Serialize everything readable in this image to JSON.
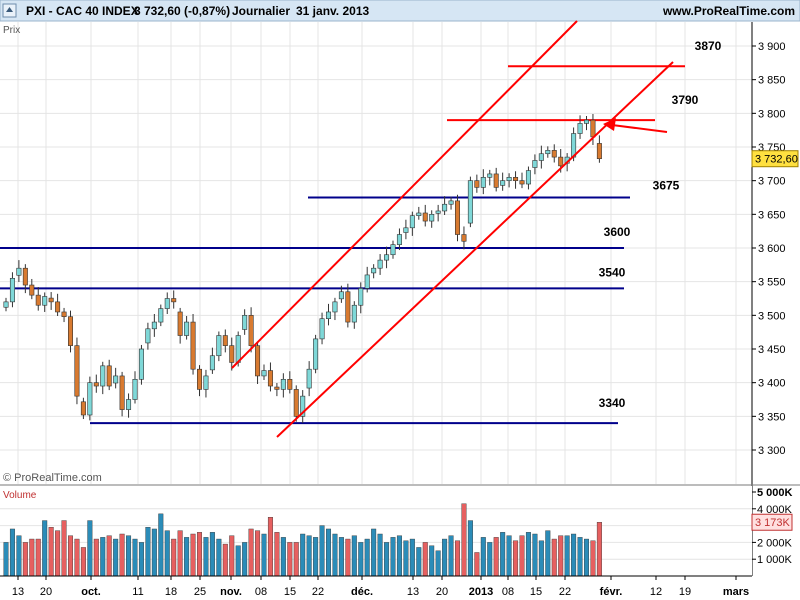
{
  "header": {
    "title": "PXI - CAC 40 INDEX",
    "quote": "3 732,60 (-0,87%)",
    "period": "Journalier",
    "date": "31 janv. 2013",
    "site": "www.ProRealTime.com"
  },
  "price_panel": {
    "label": "Prix",
    "watermark": "© ProRealTime.com"
  },
  "volume_panel": {
    "label": "Volume"
  },
  "colors": {
    "background": "#FFFFFF",
    "header_bg": "#D6E6F4",
    "grid": "#E4E4E4",
    "candle_up": "#7FD8D8",
    "candle_down": "#D87A30",
    "channel_lines": "#FF0000",
    "horizontal_levels": "#00008B",
    "volume_up": "#2B8CB8",
    "volume_down": "#E66060",
    "price_tag": "#FFE040"
  },
  "chart_data": [
    {
      "type": "candlestick",
      "title": "PXI - CAC 40 INDEX",
      "subtitle": "Journalier",
      "ylabel": "Prix",
      "ylim": [
        3270,
        3925
      ],
      "y_ticks": [
        3300,
        3350,
        3400,
        3450,
        3500,
        3550,
        3600,
        3650,
        3700,
        3750,
        3800,
        3850,
        3900
      ],
      "y_tick_labels": [
        "3 300",
        "3 350",
        "3 400",
        "3 450",
        "3 500",
        "3 550",
        "3 600",
        "3 650",
        "3 700",
        "3 750",
        "3 800",
        "3 850",
        "3 900"
      ],
      "x_ticks": [
        "13",
        "20",
        "oct.",
        "11",
        "18",
        "25",
        "nov.",
        "08",
        "15",
        "22",
        "déc.",
        "13",
        "20",
        "2013",
        "08",
        "15",
        "22",
        "févr.",
        "12",
        "19",
        "mars"
      ],
      "last_price_label": "3 732,60",
      "closes": [
        3520,
        3555,
        3570,
        3545,
        3530,
        3515,
        3528,
        3520,
        3505,
        3498,
        3455,
        3380,
        3352,
        3400,
        3395,
        3425,
        3395,
        3410,
        3360,
        3375,
        3405,
        3450,
        3480,
        3490,
        3510,
        3525,
        3520,
        3470,
        3490,
        3420,
        3390,
        3410,
        3440,
        3470,
        3455,
        3430,
        3470,
        3500,
        3455,
        3410,
        3418,
        3395,
        3390,
        3405,
        3390,
        3350,
        3380,
        3420,
        3465,
        3495,
        3505,
        3520,
        3535,
        3490,
        3515,
        3540,
        3560,
        3570,
        3582,
        3590,
        3605,
        3620,
        3630,
        3648,
        3652,
        3640,
        3650,
        3655,
        3665,
        3670,
        3620,
        3610,
        3700,
        3690,
        3705,
        3710,
        3690,
        3700,
        3705,
        3700,
        3695,
        3715,
        3730,
        3740,
        3745,
        3735,
        3722,
        3735,
        3770,
        3785,
        3790,
        3765,
        3732.6
      ],
      "levels": [
        {
          "value": 3870,
          "label": "3870"
        },
        {
          "value": 3790,
          "label": "3790"
        },
        {
          "value": 3675,
          "label": "3675"
        },
        {
          "value": 3600,
          "label": "3600"
        },
        {
          "value": 3540,
          "label": "3540"
        },
        {
          "value": 3340,
          "label": "3340"
        }
      ],
      "annotations": [
        "ascending channel",
        "arrow pointing to breakdown of channel support near 3780"
      ]
    },
    {
      "type": "bar",
      "title": "Volume",
      "y_tick_labels": [
        "5 000K",
        "4 000K",
        "3 000K",
        "2 000K",
        "1 000K"
      ],
      "ylim": [
        0,
        5000
      ],
      "last_value_label": "3 173K",
      "values_k": [
        2000,
        2800,
        2400,
        2000,
        2200,
        2200,
        3300,
        2900,
        2700,
        3300,
        2400,
        2200,
        1700,
        3300,
        2200,
        2300,
        2400,
        2200,
        2500,
        2400,
        2200,
        2000,
        2900,
        2800,
        3700,
        2700,
        2200,
        2700,
        2300,
        2500,
        2600,
        2300,
        2600,
        2200,
        1900,
        2400,
        1800,
        2000,
        2800,
        2700,
        2500,
        3500,
        2600,
        2300,
        2000,
        2000,
        2500,
        2400,
        2300,
        3000,
        2800,
        2500,
        2300,
        2200,
        2400,
        2000,
        2200,
        2800,
        2500,
        2000,
        2300,
        2400,
        2100,
        2200,
        1700,
        2000,
        1800,
        1500,
        2200,
        2400,
        2100,
        4300,
        3300,
        1400,
        2300,
        2000,
        2300,
        2600,
        2400,
        2100,
        2400,
        2600,
        2500,
        2100,
        2700,
        2200,
        2400,
        2400,
        2500,
        2300,
        2200,
        2100,
        3200
      ]
    }
  ]
}
